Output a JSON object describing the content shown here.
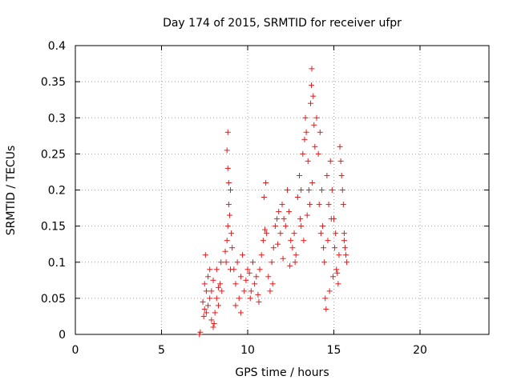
{
  "chart_data": {
    "type": "scatter",
    "title": "Day 174 of 2015, SRMTID for receiver ufpr",
    "xlabel": "GPS time / hours",
    "ylabel": "SRMTID / TECUs",
    "xlim": [
      0,
      24
    ],
    "ylim": [
      0,
      0.4
    ],
    "xticks": [
      0,
      5,
      10,
      15,
      20
    ],
    "xtick_labels": [
      "0",
      "5",
      "10",
      "15",
      "20"
    ],
    "yticks": [
      0,
      0.05,
      0.1,
      0.15,
      0.2,
      0.25,
      0.3,
      0.35,
      0.4
    ],
    "ytick_labels": [
      "0",
      "0.05",
      "0.1",
      "0.15",
      "0.2",
      "0.25",
      "0.3",
      "0.35",
      "0.4"
    ],
    "grid": true,
    "marker": "plus",
    "marker_color": "#e41a1c",
    "series": [
      {
        "name": "",
        "points": [
          [
            7.2,
            0.0
          ],
          [
            7.25,
            0.003
          ],
          [
            7.4,
            0.045
          ],
          [
            7.5,
            0.035
          ],
          [
            7.6,
            0.06
          ],
          [
            7.7,
            0.04
          ],
          [
            7.8,
            0.05
          ],
          [
            7.5,
            0.07
          ],
          [
            7.6,
            0.03
          ],
          [
            7.7,
            0.08
          ],
          [
            7.9,
            0.02
          ],
          [
            8.0,
            0.01
          ],
          [
            8.1,
            0.03
          ],
          [
            7.9,
            0.06
          ],
          [
            8.2,
            0.05
          ],
          [
            8.3,
            0.04
          ],
          [
            8.4,
            0.07
          ],
          [
            8.5,
            0.06
          ],
          [
            7.55,
            0.11
          ],
          [
            7.8,
            0.09
          ],
          [
            8.0,
            0.075
          ],
          [
            8.2,
            0.09
          ],
          [
            8.45,
            0.1
          ],
          [
            8.3,
            0.065
          ],
          [
            7.45,
            0.025
          ],
          [
            8.05,
            0.015
          ],
          [
            8.7,
            0.115
          ],
          [
            8.75,
            0.1
          ],
          [
            8.8,
            0.13
          ],
          [
            8.85,
            0.15
          ],
          [
            8.9,
            0.18
          ],
          [
            8.9,
            0.21
          ],
          [
            8.85,
            0.23
          ],
          [
            8.8,
            0.255
          ],
          [
            8.85,
            0.28
          ],
          [
            8.95,
            0.165
          ],
          [
            9.0,
            0.2
          ],
          [
            9.05,
            0.14
          ],
          [
            9.1,
            0.12
          ],
          [
            9.0,
            0.09
          ],
          [
            9.2,
            0.09
          ],
          [
            9.3,
            0.07
          ],
          [
            9.4,
            0.1
          ],
          [
            9.5,
            0.05
          ],
          [
            9.6,
            0.08
          ],
          [
            9.7,
            0.11
          ],
          [
            9.8,
            0.06
          ],
          [
            9.9,
            0.075
          ],
          [
            10.0,
            0.09
          ],
          [
            10.1,
            0.085
          ],
          [
            10.2,
            0.06
          ],
          [
            10.3,
            0.1
          ],
          [
            10.4,
            0.07
          ],
          [
            10.5,
            0.08
          ],
          [
            10.6,
            0.055
          ],
          [
            10.7,
            0.09
          ],
          [
            10.8,
            0.11
          ],
          [
            10.9,
            0.13
          ],
          [
            11.0,
            0.145
          ],
          [
            11.1,
            0.14
          ],
          [
            11.2,
            0.08
          ],
          [
            11.3,
            0.06
          ],
          [
            11.4,
            0.1
          ],
          [
            11.5,
            0.12
          ],
          [
            9.3,
            0.04
          ],
          [
            9.6,
            0.03
          ],
          [
            10.15,
            0.05
          ],
          [
            10.65,
            0.045
          ],
          [
            11.45,
            0.07
          ],
          [
            11.05,
            0.21
          ],
          [
            10.95,
            0.19
          ],
          [
            11.6,
            0.15
          ],
          [
            11.7,
            0.16
          ],
          [
            11.8,
            0.17
          ],
          [
            11.9,
            0.14
          ],
          [
            12.0,
            0.18
          ],
          [
            12.1,
            0.16
          ],
          [
            12.2,
            0.15
          ],
          [
            12.3,
            0.2
          ],
          [
            12.4,
            0.17
          ],
          [
            12.5,
            0.13
          ],
          [
            12.6,
            0.12
          ],
          [
            12.7,
            0.14
          ],
          [
            12.8,
            0.11
          ],
          [
            12.9,
            0.19
          ],
          [
            13.0,
            0.22
          ],
          [
            13.1,
            0.2
          ],
          [
            11.75,
            0.125
          ],
          [
            12.05,
            0.105
          ],
          [
            12.45,
            0.095
          ],
          [
            12.75,
            0.1
          ],
          [
            13.05,
            0.16
          ],
          [
            13.2,
            0.25
          ],
          [
            13.3,
            0.27
          ],
          [
            13.35,
            0.3
          ],
          [
            13.4,
            0.28
          ],
          [
            13.5,
            0.24
          ],
          [
            13.55,
            0.2
          ],
          [
            13.6,
            0.18
          ],
          [
            13.65,
            0.32
          ],
          [
            13.7,
            0.345
          ],
          [
            13.72,
            0.368
          ],
          [
            13.8,
            0.33
          ],
          [
            13.85,
            0.29
          ],
          [
            13.9,
            0.26
          ],
          [
            14.0,
            0.3
          ],
          [
            14.1,
            0.25
          ],
          [
            14.2,
            0.28
          ],
          [
            14.3,
            0.2
          ],
          [
            14.35,
            0.15
          ],
          [
            14.4,
            0.12
          ],
          [
            14.45,
            0.1
          ],
          [
            14.5,
            0.05
          ],
          [
            14.55,
            0.035
          ],
          [
            14.6,
            0.22
          ],
          [
            14.7,
            0.18
          ],
          [
            14.8,
            0.24
          ],
          [
            14.9,
            0.2
          ],
          [
            15.0,
            0.16
          ],
          [
            15.1,
            0.14
          ],
          [
            15.2,
            0.085
          ],
          [
            15.25,
            0.07
          ],
          [
            15.3,
            0.11
          ],
          [
            15.35,
            0.26
          ],
          [
            15.4,
            0.24
          ],
          [
            15.45,
            0.22
          ],
          [
            15.5,
            0.2
          ],
          [
            15.55,
            0.18
          ],
          [
            15.6,
            0.13
          ],
          [
            15.65,
            0.12
          ],
          [
            15.7,
            0.11
          ],
          [
            15.75,
            0.1
          ],
          [
            15.6,
            0.14
          ],
          [
            13.1,
            0.15
          ],
          [
            13.25,
            0.13
          ],
          [
            13.45,
            0.165
          ],
          [
            13.75,
            0.21
          ],
          [
            14.15,
            0.18
          ],
          [
            14.25,
            0.14
          ],
          [
            14.65,
            0.13
          ],
          [
            14.85,
            0.16
          ],
          [
            15.05,
            0.12
          ],
          [
            15.15,
            0.09
          ],
          [
            14.75,
            0.06
          ],
          [
            14.95,
            0.08
          ]
        ]
      }
    ]
  }
}
